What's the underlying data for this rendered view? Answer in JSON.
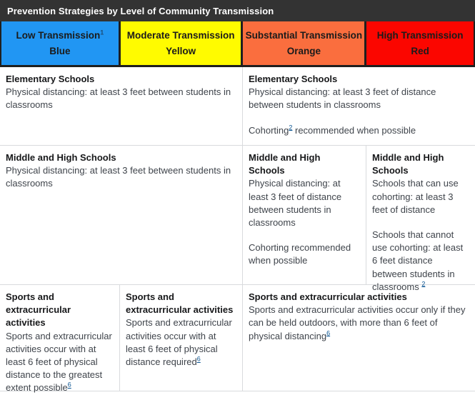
{
  "title": "Prevention Strategies by Level of Community Transmission",
  "colors": {
    "title_bar_bg": "#333333",
    "title_text": "#ffffff",
    "low_blue": "#2196F3",
    "moderate_yellow": "#FFFB00",
    "substantial_orange": "#FA6E3E",
    "high_red": "#FB0600",
    "body_border": "#d9dbdd",
    "footnote_link": "#075290"
  },
  "header": {
    "cells": [
      {
        "level": "Low Transmission",
        "footnote": "1",
        "color_name": "Blue",
        "bg": "#2196F3"
      },
      {
        "level": "Moderate Transmission",
        "color_name": "Yellow",
        "bg": "#FFFB00"
      },
      {
        "level": "Substantial Transmission",
        "color_name": "Orange",
        "bg": "#FA6E3E"
      },
      {
        "level": "High Transmission",
        "color_name": "Red",
        "bg": "#FB0600"
      }
    ]
  },
  "body": {
    "r1c1": {
      "heading": "Elementary Schools",
      "p1": "Physical distancing: at least 3 feet between students in classrooms"
    },
    "r1c2": {
      "heading": "Elementary Schools",
      "p1": "Physical distancing: at least 3 feet of distance between students in classrooms",
      "p2_pre": "Cohorting",
      "p2_sup": "2",
      "p2_post": " recommended when possible"
    },
    "r2c1": {
      "heading": "Middle and High Schools",
      "p1": "Physical distancing: at least 3 feet between students in classrooms"
    },
    "r2c2": {
      "heading": "Middle and High Schools",
      "p1": "Physical distancing: at least 3 feet of distance between students in classrooms",
      "p2": "Cohorting recommended when possible"
    },
    "r2c3": {
      "heading": "Middle and High Schools",
      "p1": "Schools that can use cohorting: at least 3 feet of distance",
      "p2_pre": "Schools that cannot use cohorting: at least 6 feet distance between students in classrooms ",
      "p2_sup": "2"
    },
    "r3c1": {
      "heading": "Sports and extracurricular activities",
      "p1_pre": "Sports and extracurricular activities occur with at least 6 feet of physical distance to the greatest extent possible",
      "p1_sup": "6"
    },
    "r3c2": {
      "heading": "Sports and extracurricular activities",
      "p1_pre": "Sports and extracurricular activities occur with at least 6 feet of physical distance required",
      "p1_sup": "6"
    },
    "r3c3": {
      "heading": "Sports and extracurricular activities",
      "p1_pre": "Sports and extracurricular activities occur only if they can be held outdoors, with more than 6 feet of physical distancing",
      "p1_sup": "6"
    }
  }
}
